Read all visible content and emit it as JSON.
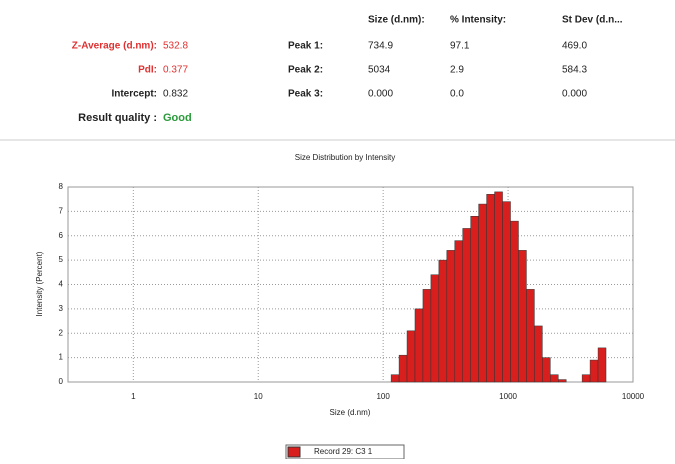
{
  "report": {
    "summary": [
      {
        "label": "Z-Average (d.nm):",
        "value": "532.8"
      },
      {
        "label": "PdI:",
        "value": "0.377"
      },
      {
        "label": "Intercept:",
        "value": "0.832"
      },
      {
        "label": "Result quality :",
        "value": "Good"
      }
    ],
    "peak_headers": [
      "Size (d.nm):",
      "% Intensity:",
      "St Dev (d.n..."
    ],
    "peaks": [
      [
        "Peak 1:",
        "734.9",
        "97.1",
        "469.0"
      ],
      [
        "Peak 2:",
        "5034",
        "2.9",
        "584.3"
      ],
      [
        "Peak 3:",
        "0.000",
        "0.0",
        "0.000"
      ]
    ]
  },
  "chart_data": {
    "type": "histogram",
    "title": "Size Distribution by Intensity",
    "x_label": "Size (d.nm)",
    "y_label": "Intensity (Percent)",
    "log_x": true,
    "grid": true,
    "legend": "bottom",
    "series_name": "Record 29: C3 1",
    "color": "#d91e1e",
    "bins": [
      115.8,
      134.1,
      155.3,
      179.8,
      208.2,
      241.1,
      279.2,
      323.3,
      374.4,
      433.6,
      502.1,
      581.4,
      673.3,
      779.7,
      902.9,
      1045.6,
      1210.8,
      1402.1,
      1623.7,
      1880.3,
      2177.4,
      2521.5,
      2919.9,
      3381.3,
      3915.6,
      4534.3,
      5250.8,
      6080.5
    ],
    "counts": [
      0.3,
      1.1,
      2.1,
      3.0,
      3.8,
      4.4,
      5.0,
      5.4,
      5.8,
      6.3,
      6.8,
      7.3,
      7.7,
      7.8,
      7.4,
      6.6,
      5.4,
      3.8,
      2.3,
      1.0,
      0.3,
      0.1,
      0,
      0,
      0.3,
      0.9,
      1.4
    ],
    "xlim": [
      0.3,
      10000
    ],
    "xticks": [
      1,
      10,
      100,
      1000,
      10000
    ],
    "ylim": [
      0,
      8
    ],
    "yticks": [
      0,
      1,
      2,
      3,
      4,
      5,
      6,
      7,
      8
    ]
  }
}
